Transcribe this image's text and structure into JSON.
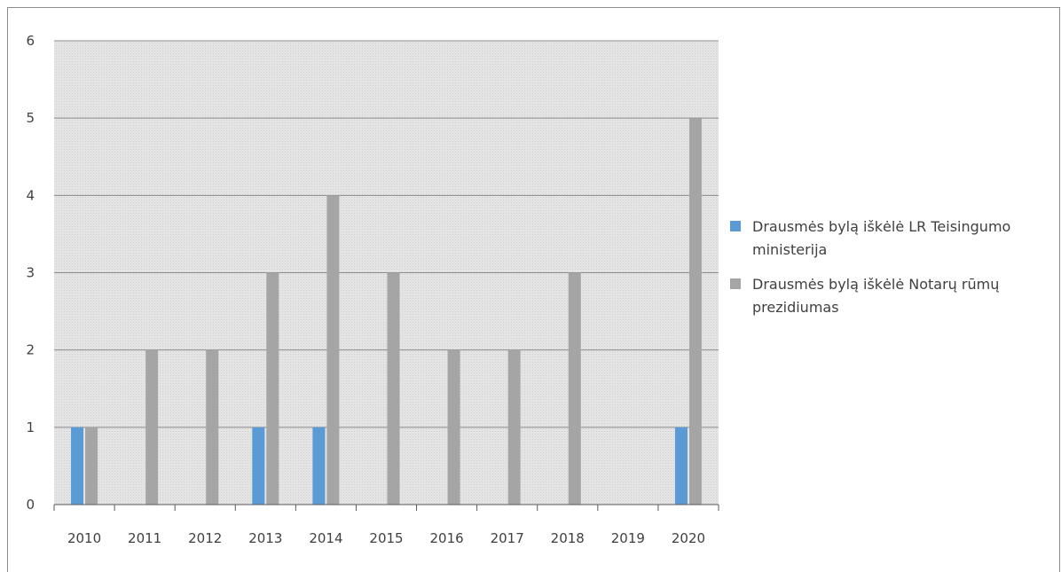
{
  "chart_data": {
    "type": "bar",
    "title": "",
    "xlabel": "",
    "ylabel": "",
    "categories": [
      "2010",
      "2011",
      "2012",
      "2013",
      "2014",
      "2015",
      "2016",
      "2017",
      "2018",
      "2019",
      "2020"
    ],
    "series": [
      {
        "name": "Drausmės bylą iškėlė LR Teisingumo ministerija",
        "color": "#5b9bd5",
        "values": [
          1,
          0,
          0,
          1,
          1,
          0,
          0,
          0,
          0,
          0,
          1
        ]
      },
      {
        "name": "Drausmės bylą iškėlė Notarų rūmų prezidiumas",
        "color": "#a5a5a5",
        "values": [
          1,
          2,
          2,
          3,
          4,
          3,
          2,
          2,
          3,
          0,
          5
        ]
      }
    ],
    "ylim": [
      0,
      6
    ],
    "yticks": [
      0,
      1,
      2,
      3,
      4,
      5,
      6
    ],
    "grid": true,
    "legend_position": "right"
  }
}
